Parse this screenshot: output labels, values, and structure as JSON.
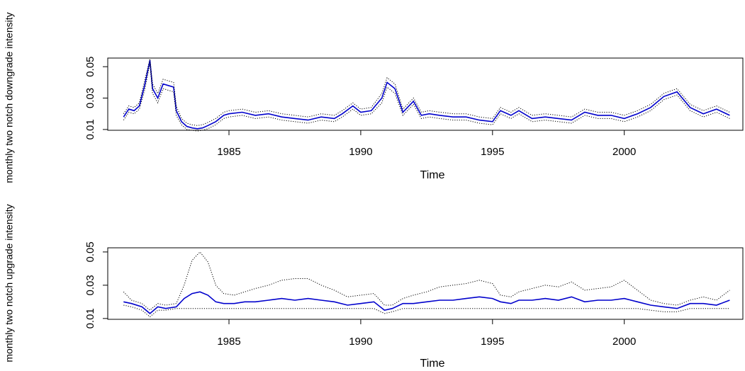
{
  "chart_data": [
    {
      "type": "line",
      "xlabel": "Time",
      "ylabel": "monthly two notch downgrade intensity",
      "xlim": [
        1981,
        2004.2
      ],
      "ylim": [
        0.01,
        0.055
      ],
      "x_ticks": [
        1985,
        1990,
        1995,
        2000
      ],
      "y_ticks": [
        0.01,
        0.03,
        0.05
      ],
      "grid": false,
      "legend": "none",
      "colors": {
        "estimate": "#0000cc",
        "bands": "#000000"
      },
      "series": [
        {
          "role": "estimate",
          "line_style": "solid",
          "x": [
            1981.0,
            1981.2,
            1981.4,
            1981.6,
            1981.8,
            1982.0,
            1982.1,
            1982.3,
            1982.5,
            1982.7,
            1982.9,
            1983.0,
            1983.2,
            1983.4,
            1983.6,
            1983.8,
            1984.0,
            1984.2,
            1984.5,
            1984.8,
            1985.0,
            1985.5,
            1986.0,
            1986.5,
            1987.0,
            1987.5,
            1988.0,
            1988.5,
            1989.0,
            1989.3,
            1989.7,
            1990.0,
            1990.4,
            1990.8,
            1991.0,
            1991.3,
            1991.6,
            1992.0,
            1992.3,
            1992.6,
            1993.0,
            1993.5,
            1994.0,
            1994.5,
            1995.0,
            1995.3,
            1995.7,
            1996.0,
            1996.5,
            1997.0,
            1997.5,
            1998.0,
            1998.5,
            1999.0,
            1999.5,
            2000.0,
            2000.5,
            2001.0,
            2001.5,
            2002.0,
            2002.5,
            2003.0,
            2003.5,
            2004.0
          ],
          "y": [
            0.018,
            0.023,
            0.022,
            0.025,
            0.038,
            0.054,
            0.036,
            0.03,
            0.039,
            0.038,
            0.037,
            0.022,
            0.015,
            0.012,
            0.011,
            0.0105,
            0.011,
            0.0125,
            0.015,
            0.019,
            0.02,
            0.021,
            0.019,
            0.02,
            0.018,
            0.017,
            0.016,
            0.018,
            0.017,
            0.02,
            0.025,
            0.021,
            0.022,
            0.03,
            0.04,
            0.036,
            0.021,
            0.028,
            0.019,
            0.02,
            0.019,
            0.018,
            0.018,
            0.016,
            0.015,
            0.022,
            0.019,
            0.022,
            0.017,
            0.018,
            0.017,
            0.016,
            0.021,
            0.019,
            0.019,
            0.017,
            0.02,
            0.024,
            0.031,
            0.034,
            0.024,
            0.02,
            0.023,
            0.019
          ]
        },
        {
          "role": "upper-band",
          "line_style": "dotted",
          "x": [
            1981.0,
            1981.2,
            1981.4,
            1981.6,
            1981.8,
            1982.0,
            1982.1,
            1982.3,
            1982.5,
            1982.7,
            1982.9,
            1983.0,
            1983.2,
            1983.4,
            1983.6,
            1983.8,
            1984.0,
            1984.2,
            1984.5,
            1984.8,
            1985.0,
            1985.5,
            1986.0,
            1986.5,
            1987.0,
            1987.5,
            1988.0,
            1988.5,
            1989.0,
            1989.3,
            1989.7,
            1990.0,
            1990.4,
            1990.8,
            1991.0,
            1991.3,
            1991.6,
            1992.0,
            1992.3,
            1992.6,
            1993.0,
            1993.5,
            1994.0,
            1994.5,
            1995.0,
            1995.3,
            1995.7,
            1996.0,
            1996.5,
            1997.0,
            1997.5,
            1998.0,
            1998.5,
            1999.0,
            1999.5,
            2000.0,
            2000.5,
            2001.0,
            2001.5,
            2002.0,
            2002.5,
            2003.0,
            2003.5,
            2004.0
          ],
          "y": [
            0.02,
            0.025,
            0.024,
            0.027,
            0.041,
            0.055,
            0.039,
            0.033,
            0.042,
            0.041,
            0.04,
            0.025,
            0.017,
            0.014,
            0.013,
            0.0125,
            0.013,
            0.0145,
            0.017,
            0.021,
            0.022,
            0.023,
            0.021,
            0.022,
            0.02,
            0.019,
            0.018,
            0.02,
            0.019,
            0.022,
            0.027,
            0.023,
            0.024,
            0.033,
            0.043,
            0.039,
            0.023,
            0.03,
            0.021,
            0.022,
            0.021,
            0.02,
            0.02,
            0.018,
            0.017,
            0.024,
            0.021,
            0.024,
            0.019,
            0.02,
            0.019,
            0.018,
            0.023,
            0.021,
            0.021,
            0.019,
            0.022,
            0.026,
            0.033,
            0.036,
            0.026,
            0.022,
            0.025,
            0.021
          ]
        },
        {
          "role": "lower-band",
          "line_style": "dotted",
          "x": [
            1981.0,
            1981.2,
            1981.4,
            1981.6,
            1981.8,
            1982.0,
            1982.1,
            1982.3,
            1982.5,
            1982.7,
            1982.9,
            1983.0,
            1983.2,
            1983.4,
            1983.6,
            1983.8,
            1984.0,
            1984.2,
            1984.5,
            1984.8,
            1985.0,
            1985.5,
            1986.0,
            1986.5,
            1987.0,
            1987.5,
            1988.0,
            1988.5,
            1989.0,
            1989.3,
            1989.7,
            1990.0,
            1990.4,
            1990.8,
            1991.0,
            1991.3,
            1991.6,
            1992.0,
            1992.3,
            1992.6,
            1993.0,
            1993.5,
            1994.0,
            1994.5,
            1995.0,
            1995.3,
            1995.7,
            1996.0,
            1996.5,
            1997.0,
            1997.5,
            1998.0,
            1998.5,
            1999.0,
            1999.5,
            2000.0,
            2000.5,
            2001.0,
            2001.5,
            2002.0,
            2002.5,
            2003.0,
            2003.5,
            2004.0
          ],
          "y": [
            0.016,
            0.021,
            0.02,
            0.023,
            0.035,
            0.052,
            0.033,
            0.027,
            0.036,
            0.035,
            0.034,
            0.019,
            0.013,
            0.01,
            0.0095,
            0.009,
            0.0095,
            0.0105,
            0.013,
            0.017,
            0.018,
            0.019,
            0.017,
            0.018,
            0.016,
            0.015,
            0.014,
            0.016,
            0.015,
            0.018,
            0.023,
            0.019,
            0.02,
            0.027,
            0.037,
            0.033,
            0.019,
            0.026,
            0.017,
            0.018,
            0.017,
            0.016,
            0.016,
            0.014,
            0.013,
            0.02,
            0.017,
            0.02,
            0.015,
            0.016,
            0.015,
            0.014,
            0.019,
            0.017,
            0.017,
            0.015,
            0.018,
            0.022,
            0.029,
            0.032,
            0.022,
            0.018,
            0.021,
            0.017
          ]
        }
      ]
    },
    {
      "type": "line",
      "xlabel": "Time",
      "ylabel": "monthly two notch upgrade intensity",
      "xlim": [
        1981,
        2004.2
      ],
      "ylim": [
        0.01,
        0.052
      ],
      "x_ticks": [
        1985,
        1990,
        1995,
        2000
      ],
      "y_ticks": [
        0.01,
        0.03,
        0.05
      ],
      "grid": false,
      "legend": "none",
      "colors": {
        "estimate": "#0000cc",
        "bands": "#000000"
      },
      "series": [
        {
          "role": "estimate",
          "line_style": "solid",
          "x": [
            1981.0,
            1981.3,
            1981.7,
            1982.0,
            1982.3,
            1982.6,
            1983.0,
            1983.3,
            1983.6,
            1983.9,
            1984.2,
            1984.5,
            1984.8,
            1985.2,
            1985.6,
            1986.0,
            1986.5,
            1987.0,
            1987.5,
            1988.0,
            1988.5,
            1989.0,
            1989.5,
            1990.0,
            1990.5,
            1990.9,
            1991.2,
            1991.6,
            1992.0,
            1992.5,
            1993.0,
            1993.5,
            1994.0,
            1994.5,
            1995.0,
            1995.3,
            1995.7,
            1996.0,
            1996.5,
            1997.0,
            1997.5,
            1998.0,
            1998.5,
            1999.0,
            1999.5,
            2000.0,
            2000.5,
            2001.0,
            2001.5,
            2002.0,
            2002.5,
            2003.0,
            2003.5,
            2004.0
          ],
          "y": [
            0.02,
            0.019,
            0.017,
            0.013,
            0.017,
            0.016,
            0.017,
            0.022,
            0.025,
            0.026,
            0.024,
            0.02,
            0.019,
            0.019,
            0.02,
            0.02,
            0.021,
            0.022,
            0.021,
            0.022,
            0.021,
            0.02,
            0.018,
            0.019,
            0.02,
            0.015,
            0.016,
            0.019,
            0.019,
            0.02,
            0.021,
            0.021,
            0.022,
            0.023,
            0.022,
            0.02,
            0.019,
            0.021,
            0.021,
            0.022,
            0.021,
            0.023,
            0.02,
            0.021,
            0.021,
            0.022,
            0.02,
            0.018,
            0.017,
            0.016,
            0.019,
            0.019,
            0.018,
            0.021
          ]
        },
        {
          "role": "upper-band",
          "line_style": "dotted",
          "x": [
            1981.0,
            1981.3,
            1981.7,
            1982.0,
            1982.3,
            1982.6,
            1983.0,
            1983.3,
            1983.6,
            1983.9,
            1984.2,
            1984.5,
            1984.8,
            1985.2,
            1985.6,
            1986.0,
            1986.5,
            1987.0,
            1987.5,
            1988.0,
            1988.5,
            1989.0,
            1989.5,
            1990.0,
            1990.5,
            1990.9,
            1991.2,
            1991.6,
            1992.0,
            1992.5,
            1993.0,
            1993.5,
            1994.0,
            1994.5,
            1995.0,
            1995.3,
            1995.7,
            1996.0,
            1996.5,
            1997.0,
            1997.5,
            1998.0,
            1998.5,
            1999.0,
            1999.5,
            2000.0,
            2000.5,
            2001.0,
            2001.5,
            2002.0,
            2002.5,
            2003.0,
            2003.5,
            2004.0
          ],
          "y": [
            0.026,
            0.021,
            0.019,
            0.015,
            0.019,
            0.018,
            0.019,
            0.03,
            0.045,
            0.05,
            0.044,
            0.03,
            0.025,
            0.024,
            0.026,
            0.028,
            0.03,
            0.033,
            0.034,
            0.034,
            0.03,
            0.027,
            0.023,
            0.024,
            0.025,
            0.018,
            0.018,
            0.022,
            0.024,
            0.026,
            0.029,
            0.03,
            0.031,
            0.033,
            0.031,
            0.024,
            0.023,
            0.026,
            0.028,
            0.03,
            0.029,
            0.032,
            0.027,
            0.028,
            0.029,
            0.033,
            0.027,
            0.021,
            0.019,
            0.018,
            0.021,
            0.023,
            0.021,
            0.027
          ]
        },
        {
          "role": "lower-band",
          "line_style": "dotted",
          "x": [
            1981.0,
            1981.3,
            1981.7,
            1982.0,
            1982.3,
            1982.6,
            1983.0,
            1983.3,
            1983.6,
            1983.9,
            1984.2,
            1984.5,
            1984.8,
            1985.2,
            1985.6,
            1986.0,
            1986.5,
            1987.0,
            1987.5,
            1988.0,
            1988.5,
            1989.0,
            1989.5,
            1990.0,
            1990.5,
            1990.9,
            1991.2,
            1991.6,
            1992.0,
            1992.5,
            1993.0,
            1993.5,
            1994.0,
            1994.5,
            1995.0,
            1995.3,
            1995.7,
            1996.0,
            1996.5,
            1997.0,
            1997.5,
            1998.0,
            1998.5,
            1999.0,
            1999.5,
            2000.0,
            2000.5,
            2001.0,
            2001.5,
            2002.0,
            2002.5,
            2003.0,
            2003.5,
            2004.0
          ],
          "y": [
            0.018,
            0.017,
            0.015,
            0.011,
            0.015,
            0.015,
            0.016,
            0.016,
            0.016,
            0.016,
            0.016,
            0.016,
            0.016,
            0.016,
            0.016,
            0.016,
            0.016,
            0.016,
            0.016,
            0.016,
            0.016,
            0.016,
            0.016,
            0.016,
            0.016,
            0.013,
            0.014,
            0.016,
            0.016,
            0.016,
            0.016,
            0.016,
            0.016,
            0.016,
            0.016,
            0.016,
            0.016,
            0.016,
            0.016,
            0.016,
            0.016,
            0.016,
            0.016,
            0.016,
            0.016,
            0.016,
            0.016,
            0.015,
            0.014,
            0.014,
            0.016,
            0.016,
            0.016,
            0.016
          ]
        }
      ]
    }
  ]
}
